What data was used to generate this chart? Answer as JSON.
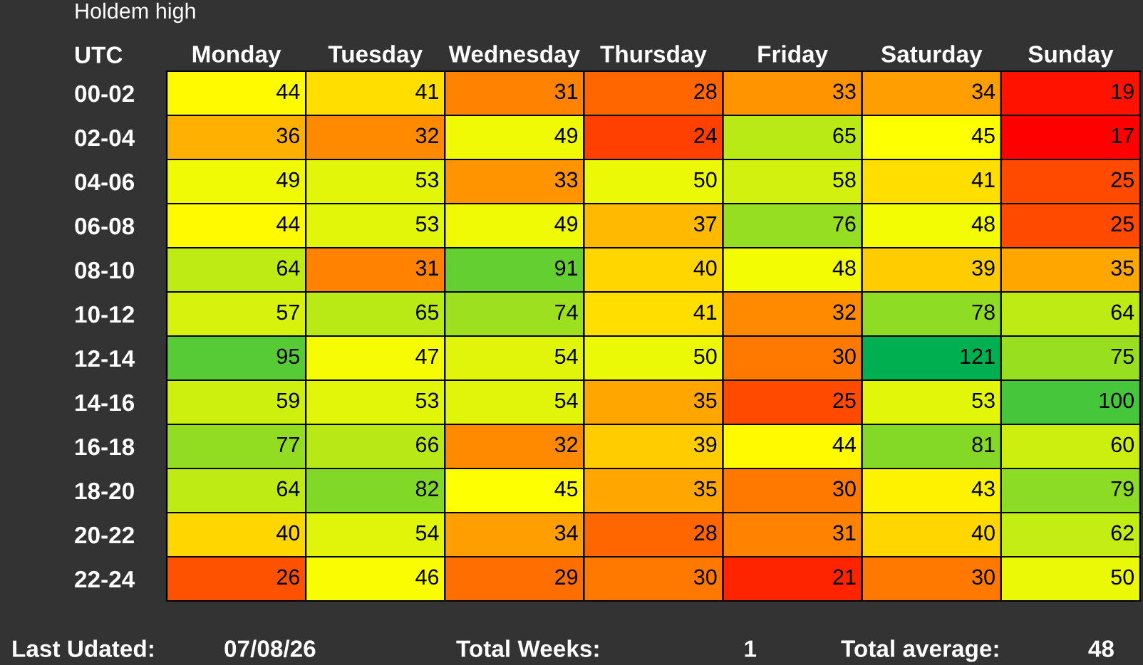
{
  "chart_data": {
    "type": "heatmap",
    "title": "Holdem high",
    "ylabel": "UTC",
    "categories": [
      "Monday",
      "Tuesday",
      "Wednesday",
      "Thursday",
      "Friday",
      "Saturday",
      "Sunday"
    ],
    "y_categories": [
      "00-02",
      "02-04",
      "04-06",
      "06-08",
      "08-10",
      "10-12",
      "12-14",
      "14-16",
      "16-18",
      "18-20",
      "20-22",
      "22-24"
    ],
    "cells": [
      [
        44,
        41,
        31,
        28,
        33,
        34,
        19
      ],
      [
        36,
        32,
        49,
        24,
        65,
        45,
        17
      ],
      [
        49,
        53,
        33,
        50,
        58,
        41,
        25
      ],
      [
        44,
        53,
        49,
        37,
        76,
        48,
        25
      ],
      [
        64,
        31,
        91,
        40,
        48,
        39,
        35
      ],
      [
        57,
        65,
        74,
        41,
        32,
        78,
        64
      ],
      [
        95,
        47,
        54,
        50,
        30,
        121,
        75
      ],
      [
        59,
        53,
        54,
        35,
        25,
        53,
        100
      ],
      [
        77,
        66,
        32,
        39,
        44,
        81,
        60
      ],
      [
        64,
        82,
        45,
        35,
        30,
        43,
        79
      ],
      [
        40,
        54,
        34,
        28,
        31,
        40,
        62
      ],
      [
        26,
        46,
        29,
        30,
        21,
        30,
        50
      ]
    ],
    "data_labels": true,
    "annotations": [
      "Last Udated:",
      "07/08/26",
      "Total Weeks:",
      "1",
      "Total average:",
      "48"
    ]
  }
}
